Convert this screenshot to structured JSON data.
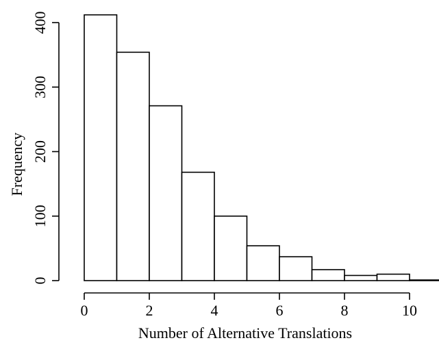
{
  "chart_data": {
    "type": "bar",
    "subtype": "histogram",
    "title": "",
    "xlabel": "Number of Alternative Translations",
    "ylabel": "Frequency",
    "bins": [
      {
        "from": 0,
        "to": 1,
        "value": 412
      },
      {
        "from": 1,
        "to": 2,
        "value": 354
      },
      {
        "from": 2,
        "to": 3,
        "value": 271
      },
      {
        "from": 3,
        "to": 4,
        "value": 168
      },
      {
        "from": 4,
        "to": 5,
        "value": 100
      },
      {
        "from": 5,
        "to": 6,
        "value": 54
      },
      {
        "from": 6,
        "to": 7,
        "value": 37
      },
      {
        "from": 7,
        "to": 8,
        "value": 17
      },
      {
        "from": 8,
        "to": 9,
        "value": 8
      },
      {
        "from": 9,
        "to": 10,
        "value": 10
      },
      {
        "from": 10,
        "to": 11,
        "value": 1
      }
    ],
    "xlim": [
      0,
      11
    ],
    "ylim": [
      0,
      412
    ],
    "xticks": [
      0,
      2,
      4,
      6,
      8,
      10
    ],
    "yticks": [
      0,
      100,
      200,
      300,
      400
    ],
    "xtick_labels": [
      "0",
      "2",
      "4",
      "6",
      "8",
      "10"
    ],
    "ytick_labels": [
      "0",
      "100",
      "200",
      "300",
      "400"
    ],
    "grid": false,
    "legend": "none",
    "bar_fill": "#ffffff",
    "bar_stroke": "#000000"
  }
}
